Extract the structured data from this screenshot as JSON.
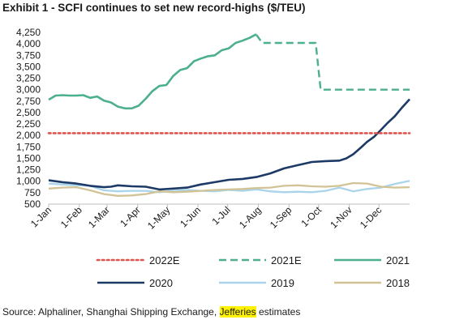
{
  "title": "Exhibit 1 - SCFI continues to set new record-highs ($/TEU)",
  "source": {
    "prefix": "Source: Alphaliner, Shanghai Shipping Exchange, ",
    "highlight": "Jefferies",
    "suffix": " estimates"
  },
  "chart_data": {
    "type": "line",
    "title": "Exhibit 1 - SCFI continues to set new record-highs ($/TEU)",
    "xlabel": "",
    "ylabel": "",
    "ylim": [
      500,
      4250
    ],
    "xlim": [
      0,
      365
    ],
    "grid": false,
    "legend_position": "bottom",
    "y_ticks": [
      "4,250",
      "4,000",
      "3,750",
      "3,500",
      "3,250",
      "3,000",
      "2,750",
      "2,500",
      "2,250",
      "2,000",
      "1,750",
      "1,500",
      "1,250",
      "1,000",
      "750",
      "500"
    ],
    "y_tick_values": [
      4250,
      4000,
      3750,
      3500,
      3250,
      3000,
      2750,
      2500,
      2250,
      2000,
      1750,
      1500,
      1250,
      1000,
      750,
      500
    ],
    "x_ticks": [
      "1-Jan",
      "1-Feb",
      "1-Mar",
      "1-Apr",
      "1-May",
      "1-Jun",
      "1-Jul",
      "1-Aug",
      "1-Sep",
      "1-Oct",
      "1-Nov",
      "1-Dec"
    ],
    "x_tick_days": [
      0,
      31,
      59,
      90,
      120,
      151,
      181,
      212,
      243,
      273,
      304,
      334
    ],
    "series": [
      {
        "name": "2022E",
        "color": "#e0524b",
        "style": "dotted",
        "x": [
          0,
          365
        ],
        "y": [
          2050,
          2050
        ]
      },
      {
        "name": "2021E",
        "color": "#4caf8e",
        "style": "dashed",
        "x": [
          210,
          216,
          270,
          275,
          365
        ],
        "y": [
          4200,
          4020,
          4020,
          3000,
          3000
        ]
      },
      {
        "name": "2021",
        "color": "#4caf8e",
        "style": "solid",
        "x": [
          0,
          7,
          14,
          21,
          28,
          35,
          42,
          49,
          56,
          63,
          70,
          77,
          84,
          91,
          98,
          105,
          112,
          119,
          126,
          133,
          140,
          147,
          154,
          161,
          168,
          175,
          182,
          189,
          196,
          203,
          210
        ],
        "y": [
          2780,
          2870,
          2880,
          2870,
          2870,
          2880,
          2820,
          2850,
          2760,
          2720,
          2630,
          2590,
          2590,
          2650,
          2800,
          2970,
          3080,
          3100,
          3300,
          3430,
          3470,
          3620,
          3680,
          3730,
          3750,
          3860,
          3900,
          4020,
          4070,
          4130,
          4210
        ]
      },
      {
        "name": "2020",
        "color": "#1d3a66",
        "style": "solid",
        "x": [
          0,
          14,
          28,
          42,
          56,
          63,
          70,
          84,
          98,
          112,
          126,
          140,
          154,
          168,
          182,
          196,
          210,
          224,
          238,
          252,
          266,
          280,
          294,
          301,
          308,
          315,
          322,
          329,
          336,
          343,
          350,
          357,
          365
        ],
        "y": [
          1020,
          980,
          950,
          900,
          870,
          880,
          910,
          890,
          880,
          820,
          840,
          860,
          930,
          980,
          1030,
          1050,
          1090,
          1170,
          1280,
          1350,
          1420,
          1440,
          1450,
          1500,
          1590,
          1720,
          1860,
          1970,
          2120,
          2280,
          2420,
          2600,
          2790
        ]
      },
      {
        "name": "2019",
        "color": "#a9d4ea",
        "style": "solid",
        "x": [
          0,
          21,
          42,
          56,
          70,
          84,
          98,
          112,
          126,
          140,
          154,
          168,
          182,
          196,
          210,
          224,
          238,
          252,
          266,
          280,
          294,
          308,
          322,
          336,
          350,
          365
        ],
        "y": [
          950,
          920,
          900,
          800,
          780,
          790,
          790,
          760,
          790,
          810,
          790,
          780,
          810,
          790,
          820,
          780,
          760,
          770,
          760,
          790,
          860,
          780,
          830,
          860,
          940,
          1010
        ]
      },
      {
        "name": "2018",
        "color": "#d2c396",
        "style": "solid",
        "x": [
          0,
          14,
          28,
          42,
          56,
          70,
          84,
          98,
          112,
          126,
          140,
          154,
          168,
          182,
          196,
          210,
          224,
          238,
          252,
          266,
          280,
          294,
          308,
          322,
          336,
          350,
          365
        ],
        "y": [
          840,
          860,
          870,
          800,
          720,
          680,
          690,
          720,
          780,
          760,
          770,
          790,
          810,
          820,
          830,
          850,
          860,
          900,
          910,
          890,
          880,
          900,
          960,
          950,
          880,
          860,
          870
        ]
      }
    ]
  },
  "legend": [
    {
      "name": "2022E",
      "color": "#e0524b",
      "style": "dotted"
    },
    {
      "name": "2021E",
      "color": "#4caf8e",
      "style": "dashed"
    },
    {
      "name": "2021",
      "color": "#4caf8e",
      "style": "solid"
    },
    {
      "name": "2020",
      "color": "#1d3a66",
      "style": "solid"
    },
    {
      "name": "2019",
      "color": "#a9d4ea",
      "style": "solid"
    },
    {
      "name": "2018",
      "color": "#d2c396",
      "style": "solid"
    }
  ]
}
